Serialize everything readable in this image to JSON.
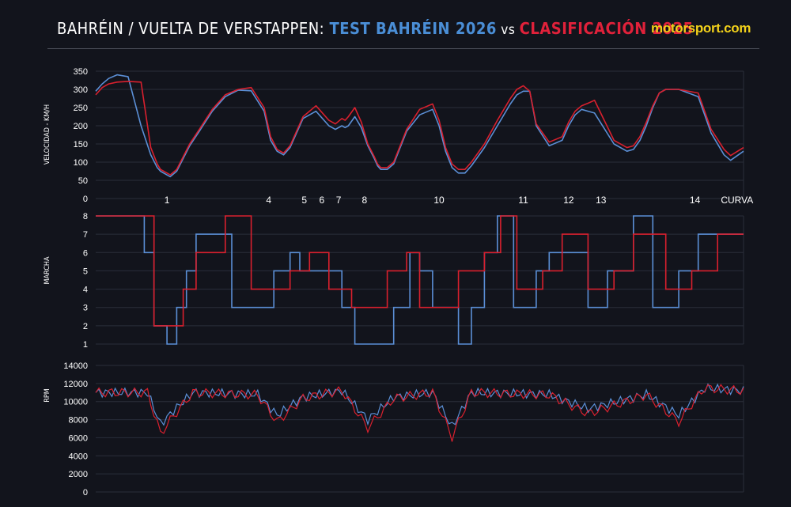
{
  "header": {
    "title_main": "BAHRÉIN / VUELTA DE VERSTAPPEN: ",
    "title_series_a": "TEST BAHRÉIN 2026",
    "title_vs": " vs ",
    "title_series_b": "CLASIFICACIÓN 2025",
    "logo": "motorsport.com"
  },
  "colors": {
    "series_2026": "#5b8fd6",
    "series_2025": "#d9202e",
    "grid": "#2a2e3a",
    "background": "#12141c"
  },
  "chart_data": [
    {
      "type": "line",
      "ylabel": "VELOCIDAD - KM/H",
      "ylim": [
        0,
        350
      ],
      "yticks": [
        0,
        50,
        100,
        150,
        200,
        250,
        300,
        350
      ],
      "grid": true,
      "x": [
        0,
        0.01,
        0.02,
        0.033,
        0.05,
        0.07,
        0.085,
        0.095,
        0.1,
        0.115,
        0.125,
        0.135,
        0.145,
        0.16,
        0.18,
        0.2,
        0.22,
        0.24,
        0.26,
        0.27,
        0.28,
        0.29,
        0.3,
        0.31,
        0.32,
        0.34,
        0.36,
        0.37,
        0.38,
        0.385,
        0.39,
        0.4,
        0.41,
        0.42,
        0.43,
        0.435,
        0.44,
        0.45,
        0.46,
        0.47,
        0.48,
        0.5,
        0.52,
        0.53,
        0.54,
        0.55,
        0.56,
        0.57,
        0.58,
        0.6,
        0.62,
        0.64,
        0.65,
        0.66,
        0.67,
        0.68,
        0.7,
        0.72,
        0.73,
        0.74,
        0.75,
        0.76,
        0.77,
        0.8,
        0.82,
        0.83,
        0.84,
        0.85,
        0.86,
        0.87,
        0.88,
        0.9,
        0.93,
        0.95,
        0.97,
        0.98,
        1.0
      ],
      "series": [
        {
          "name": "TEST BAHRÉIN 2026",
          "values": [
            295,
            315,
            330,
            340,
            335,
            200,
            120,
            85,
            75,
            60,
            75,
            110,
            145,
            185,
            240,
            280,
            298,
            296,
            240,
            160,
            130,
            120,
            140,
            180,
            220,
            240,
            200,
            190,
            200,
            195,
            200,
            225,
            195,
            145,
            110,
            90,
            80,
            80,
            95,
            140,
            185,
            230,
            245,
            200,
            130,
            85,
            70,
            70,
            90,
            140,
            200,
            260,
            285,
            295,
            295,
            200,
            145,
            160,
            200,
            230,
            245,
            240,
            235,
            150,
            130,
            135,
            160,
            200,
            250,
            290,
            300,
            300,
            280,
            180,
            120,
            105,
            130
          ]
        },
        {
          "name": "CLASIFICACIÓN 2025",
          "values": [
            285,
            305,
            315,
            320,
            322,
            320,
            140,
            95,
            80,
            65,
            80,
            115,
            150,
            190,
            245,
            285,
            300,
            305,
            250,
            170,
            135,
            125,
            145,
            185,
            225,
            255,
            215,
            205,
            220,
            215,
            225,
            250,
            210,
            150,
            115,
            95,
            85,
            85,
            100,
            145,
            190,
            245,
            260,
            215,
            140,
            95,
            80,
            80,
            100,
            150,
            215,
            275,
            300,
            310,
            295,
            205,
            155,
            170,
            210,
            240,
            255,
            262,
            270,
            160,
            140,
            145,
            170,
            210,
            255,
            290,
            300,
            300,
            290,
            190,
            135,
            118,
            140
          ]
        }
      ],
      "annotations": [
        "1",
        "4",
        "5",
        "6",
        "7",
        "8",
        "10",
        "11",
        "12",
        "13",
        "14",
        "CURVA"
      ]
    },
    {
      "type": "line",
      "ylabel": "MARCHA",
      "ylim": [
        1,
        8
      ],
      "yticks": [
        1,
        2,
        3,
        4,
        5,
        6,
        7,
        8
      ],
      "grid": true
    },
    {
      "type": "line",
      "ylabel": "RPM",
      "ylim": [
        0,
        14000
      ],
      "yticks": [
        0,
        2000,
        4000,
        6000,
        8000,
        10000,
        12000,
        14000
      ],
      "grid": true
    }
  ]
}
